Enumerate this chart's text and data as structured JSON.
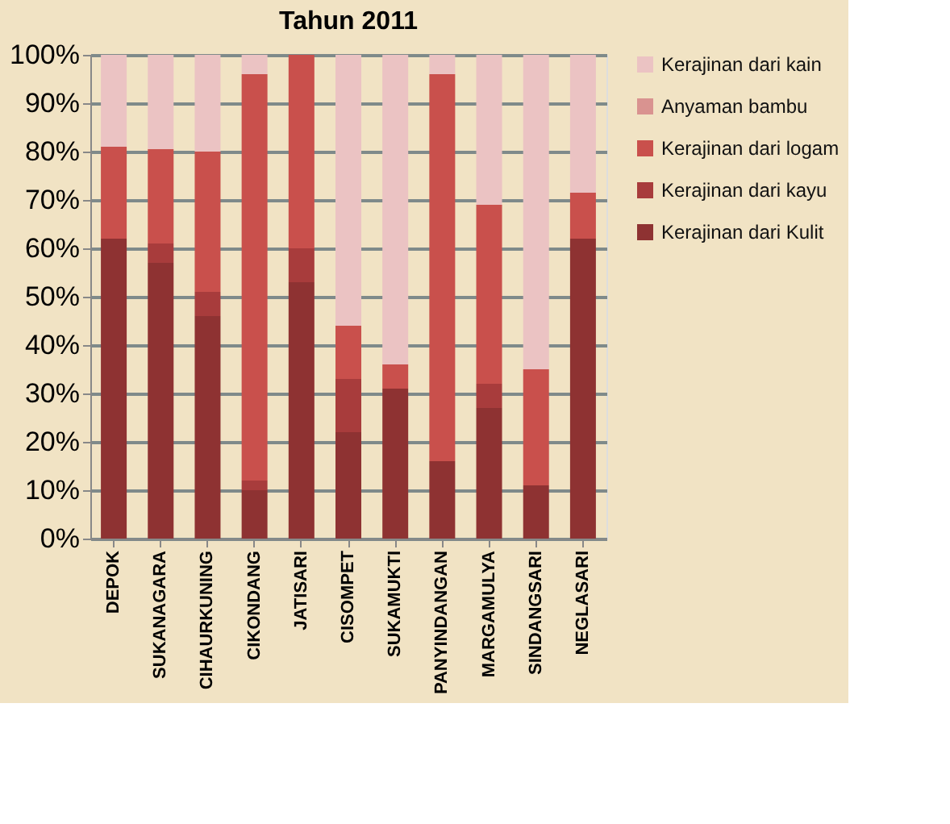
{
  "chart_data": {
    "type": "bar",
    "title": "Tahun 2011",
    "stacked": true,
    "categories": [
      "DEPOK",
      "SUKANAGARA",
      "CIHAURKUNING",
      "CIKONDANG",
      "JATISARI",
      "CISOMPET",
      "SUKAMUKTI",
      "PANYINDANGAN",
      "MARGAMULYA",
      "SINDANGSARI",
      "NEGLASARI"
    ],
    "series": [
      {
        "name": "Kerajinan dari Kulit",
        "color": "#8e3232",
        "values": [
          62,
          57,
          46,
          10,
          53,
          22,
          31,
          16,
          27,
          11,
          62
        ]
      },
      {
        "name": "Kerajinan dari kayu",
        "color": "#a83c3c",
        "values": [
          0,
          4,
          5,
          2,
          7,
          11,
          0,
          0,
          5,
          0,
          0
        ]
      },
      {
        "name": "Kerajinan dari logam",
        "color": "#c9504c",
        "values": [
          19,
          19.5,
          29,
          84,
          40,
          11,
          5,
          80,
          37,
          24,
          9.5
        ]
      },
      {
        "name": "Anyaman bambu",
        "color": "#d99390",
        "values": [
          0,
          0,
          0,
          0,
          0,
          0,
          0,
          0,
          0,
          0,
          0
        ]
      },
      {
        "name": "Kerajinan dari kain",
        "color": "#ebc3c3",
        "values": [
          19,
          19.5,
          20,
          4,
          0,
          56,
          64,
          4,
          31,
          65,
          28.5
        ]
      }
    ],
    "ylim": [
      0,
      100
    ],
    "yticks": [
      {
        "value": 0,
        "label": "0%"
      },
      {
        "value": 10,
        "label": "10%"
      },
      {
        "value": 20,
        "label": "20%"
      },
      {
        "value": 30,
        "label": "30%"
      },
      {
        "value": 40,
        "label": "40%"
      },
      {
        "value": 50,
        "label": "50%"
      },
      {
        "value": 60,
        "label": "60%"
      },
      {
        "value": 70,
        "label": "70%"
      },
      {
        "value": 80,
        "label": "80%"
      },
      {
        "value": 90,
        "label": "90%"
      },
      {
        "value": 100,
        "label": "100%"
      }
    ],
    "grid": "y",
    "legend": "right"
  }
}
